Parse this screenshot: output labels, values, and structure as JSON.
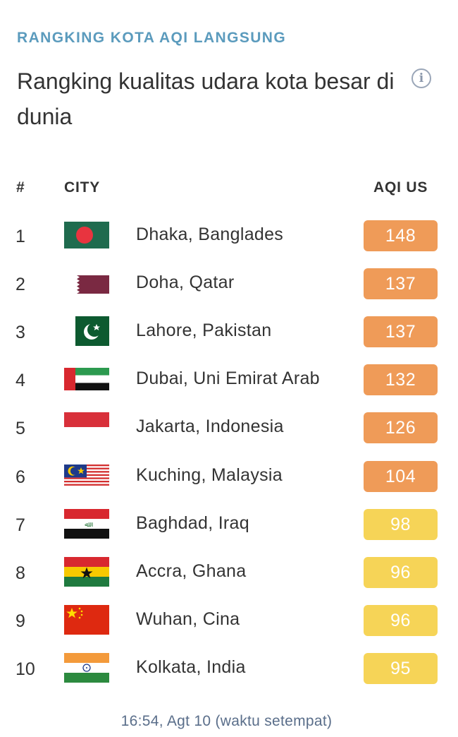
{
  "header": {
    "eyebrow": "RANGKING KOTA AQI LANGSUNG",
    "title": "Rangking kualitas udara kota besar di dunia",
    "info_icon": "info-icon"
  },
  "table": {
    "columns": {
      "rank": "#",
      "city": "CITY",
      "aqi": "AQI US"
    },
    "rows": [
      {
        "rank": "1",
        "city": "Dhaka, Banglades",
        "aqi": "148",
        "level": "unhealthy-sensitive",
        "flag": "bangladesh-flag-icon"
      },
      {
        "rank": "2",
        "city": "Doha, Qatar",
        "aqi": "137",
        "level": "unhealthy-sensitive",
        "flag": "qatar-flag-icon"
      },
      {
        "rank": "3",
        "city": "Lahore, Pakistan",
        "aqi": "137",
        "level": "unhealthy-sensitive",
        "flag": "pakistan-flag-icon"
      },
      {
        "rank": "4",
        "city": "Dubai, Uni Emirat Arab",
        "aqi": "132",
        "level": "unhealthy-sensitive",
        "flag": "uae-flag-icon"
      },
      {
        "rank": "5",
        "city": "Jakarta, Indonesia",
        "aqi": "126",
        "level": "unhealthy-sensitive",
        "flag": "indonesia-flag-icon"
      },
      {
        "rank": "6",
        "city": "Kuching, Malaysia",
        "aqi": "104",
        "level": "unhealthy-sensitive",
        "flag": "malaysia-flag-icon"
      },
      {
        "rank": "7",
        "city": "Baghdad, Iraq",
        "aqi": "98",
        "level": "moderate",
        "flag": "iraq-flag-icon"
      },
      {
        "rank": "8",
        "city": "Accra, Ghana",
        "aqi": "96",
        "level": "moderate",
        "flag": "ghana-flag-icon"
      },
      {
        "rank": "9",
        "city": "Wuhan, Cina",
        "aqi": "96",
        "level": "moderate",
        "flag": "china-flag-icon"
      },
      {
        "rank": "10",
        "city": "Kolkata, India",
        "aqi": "95",
        "level": "moderate",
        "flag": "india-flag-icon"
      }
    ]
  },
  "colors": {
    "eyebrow": "#5b9bbd",
    "unhealthy-sensitive": "#ef9b58",
    "moderate": "#f6d457",
    "text": "#333333"
  },
  "footer": {
    "timestamp": "16:54, Agt 10 (waktu setempat)"
  }
}
